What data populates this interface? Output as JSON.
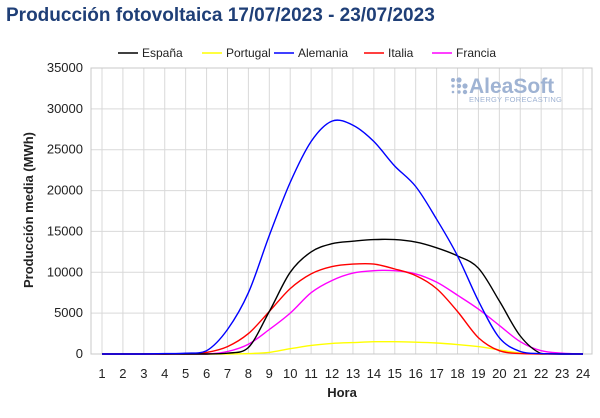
{
  "chart_data": {
    "type": "line",
    "title": "Producción fotovoltaica 17/07/2023 - 23/07/2023",
    "xlabel": "Hora",
    "ylabel": "Producción media (MWh)",
    "x": [
      1,
      2,
      3,
      4,
      5,
      6,
      7,
      8,
      9,
      10,
      11,
      12,
      13,
      14,
      15,
      16,
      17,
      18,
      19,
      20,
      21,
      22,
      23,
      24
    ],
    "xlim": [
      1,
      24
    ],
    "ylim": [
      0,
      35000
    ],
    "yticks": [
      "0",
      "5000",
      "10000",
      "15000",
      "20000",
      "25000",
      "30000",
      "35000"
    ],
    "grid": true,
    "legend_position": "top",
    "series": [
      {
        "name": "España",
        "color": "#000000",
        "values": [
          0,
          0,
          0,
          0,
          0,
          0,
          100,
          800,
          5200,
          10000,
          12500,
          13500,
          13800,
          14000,
          14000,
          13700,
          13000,
          12000,
          10500,
          6500,
          2200,
          50,
          0,
          0
        ]
      },
      {
        "name": "Portugal",
        "color": "#ffff00",
        "values": [
          0,
          0,
          0,
          0,
          0,
          0,
          0,
          50,
          200,
          650,
          1050,
          1300,
          1400,
          1500,
          1500,
          1450,
          1350,
          1150,
          900,
          500,
          100,
          0,
          0,
          0
        ]
      },
      {
        "name": "Alemania",
        "color": "#0000ff",
        "values": [
          0,
          0,
          0,
          50,
          100,
          400,
          3000,
          7500,
          14500,
          21000,
          26000,
          28500,
          28000,
          26000,
          23000,
          20500,
          16500,
          12000,
          6500,
          2000,
          300,
          50,
          0,
          0
        ]
      },
      {
        "name": "Italia",
        "color": "#ff0000",
        "values": [
          0,
          0,
          0,
          0,
          50,
          200,
          900,
          2500,
          5200,
          8000,
          9800,
          10700,
          11000,
          11000,
          10400,
          9600,
          8000,
          5200,
          2000,
          400,
          50,
          0,
          0,
          0
        ]
      },
      {
        "name": "Francia",
        "color": "#ff00ff",
        "values": [
          0,
          0,
          0,
          0,
          0,
          0,
          300,
          1200,
          3000,
          5000,
          7500,
          9000,
          9900,
          10200,
          10200,
          9800,
          8800,
          7200,
          5500,
          3500,
          1500,
          400,
          100,
          0
        ]
      }
    ]
  },
  "logo": {
    "name": "AleaSoft",
    "tagline": "ENERGY FORECASTING",
    "icon": "dots-icon"
  }
}
